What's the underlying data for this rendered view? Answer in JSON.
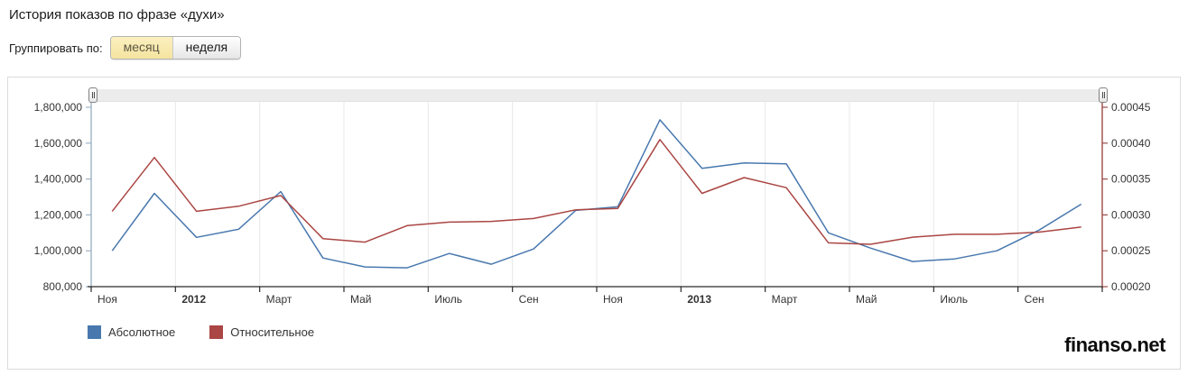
{
  "header": {
    "title": "История показов по фразе «духи»"
  },
  "controls": {
    "group_label": "Группировать по:",
    "options": [
      {
        "label": "месяц",
        "active": true
      },
      {
        "label": "неделя",
        "active": false
      }
    ]
  },
  "watermark": "finanso.net",
  "colors": {
    "absolute": "#4878ae",
    "relative": "#aa4643",
    "grid": "#e8e8e8",
    "left_axis": "#9cb3c6",
    "right_axis": "#9c4a48",
    "x_axis": "#2b2b2b",
    "label_text": "#333333"
  },
  "chart_data": {
    "type": "line",
    "x": [
      "2011-11",
      "2011-12",
      "2012-01",
      "2012-02",
      "2012-03",
      "2012-04",
      "2012-05",
      "2012-06",
      "2012-07",
      "2012-08",
      "2012-09",
      "2012-10",
      "2012-11",
      "2012-12",
      "2013-01",
      "2013-02",
      "2013-03",
      "2013-04",
      "2013-05",
      "2013-06",
      "2013-07",
      "2013-08",
      "2013-09",
      "2013-10"
    ],
    "x_tick_labels": [
      {
        "label": "Ноя",
        "bold": false
      },
      {
        "label": "2012",
        "bold": true
      },
      {
        "label": "Март",
        "bold": false
      },
      {
        "label": "Май",
        "bold": false
      },
      {
        "label": "Июль",
        "bold": false
      },
      {
        "label": "Сен",
        "bold": false
      },
      {
        "label": "Ноя",
        "bold": false
      },
      {
        "label": "2013",
        "bold": true
      },
      {
        "label": "Март",
        "bold": false
      },
      {
        "label": "Май",
        "bold": false
      },
      {
        "label": "Июль",
        "bold": false
      },
      {
        "label": "Сен",
        "bold": false
      }
    ],
    "series": [
      {
        "name": "Абсолютное",
        "axis": "left",
        "color": "#4878ae",
        "values": [
          1000000,
          1320000,
          1075000,
          1120000,
          1330000,
          960000,
          910000,
          905000,
          985000,
          925000,
          1010000,
          1225000,
          1245000,
          1730000,
          1460000,
          1490000,
          1485000,
          1100000,
          1015000,
          940000,
          955000,
          1000000,
          1115000,
          1260000
        ]
      },
      {
        "name": "Относительное",
        "axis": "right",
        "color": "#aa4643",
        "values": [
          0.000305,
          0.00038,
          0.000305,
          0.000312,
          0.000327,
          0.000267,
          0.000262,
          0.000285,
          0.00029,
          0.000291,
          0.000295,
          0.000307,
          0.000309,
          0.000405,
          0.00033,
          0.000352,
          0.000338,
          0.000261,
          0.000259,
          0.000269,
          0.000273,
          0.000273,
          0.000276,
          0.000283
        ]
      }
    ],
    "left_axis": {
      "min": 800000,
      "max": 1800000,
      "step": 200000,
      "tick_labels": [
        "1,800,000",
        "1,600,000",
        "1,400,000",
        "1,200,000",
        "1,000,000",
        "800,000"
      ]
    },
    "right_axis": {
      "min": 0.0002,
      "max": 0.00045,
      "step": 5e-05,
      "tick_labels": [
        "0.00045",
        "0.00040",
        "0.00035",
        "0.00030",
        "0.00025",
        "0.00020"
      ]
    },
    "grid": true,
    "legend_position": "bottom-left"
  }
}
